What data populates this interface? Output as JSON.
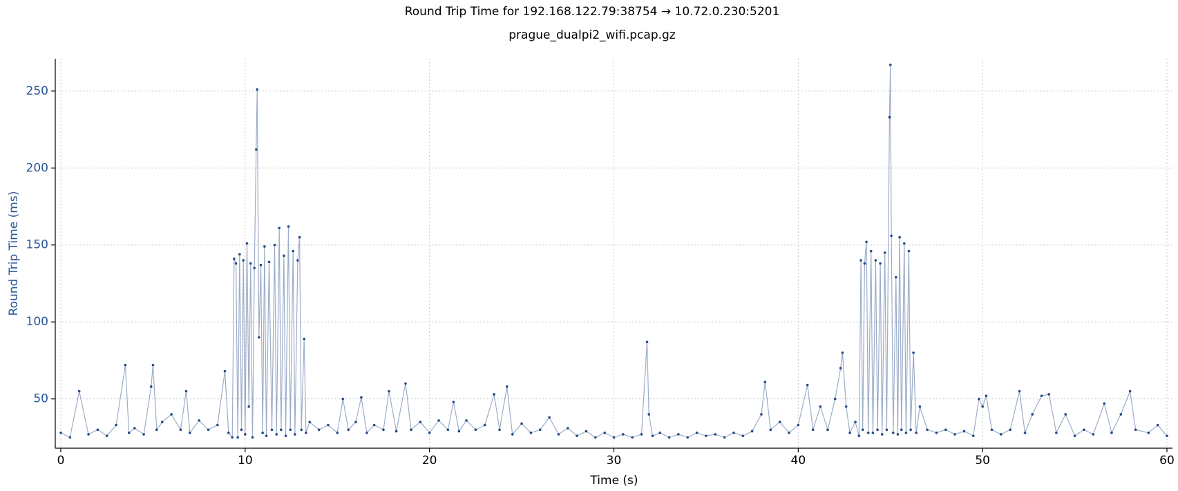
{
  "chart_data": {
    "type": "line",
    "title": "Round Trip Time for 192.168.122.79:38754 → 10.72.0.230:5201",
    "subtitle": "prague_dualpi2_wifi.pcap.gz",
    "x_label": "Time (s)",
    "y_label": "Round Trip Time (ms)",
    "color": "#234a85",
    "grid": true,
    "xlim": [
      -0.3,
      60.3
    ],
    "ylim": [
      18,
      271
    ],
    "xticks": [
      0,
      10,
      20,
      30,
      40,
      50,
      60
    ],
    "yticks": [
      50,
      100,
      150,
      200,
      250
    ],
    "x": [
      0,
      0.5,
      1.0,
      1.5,
      2.0,
      2.5,
      3.0,
      3.5,
      3.7,
      4.0,
      4.5,
      4.9,
      5.0,
      5.2,
      5.5,
      6.0,
      6.5,
      6.8,
      7.0,
      7.5,
      8.0,
      8.5,
      8.9,
      9.1,
      9.3,
      9.4,
      9.5,
      9.6,
      9.7,
      9.8,
      9.9,
      10.0,
      10.1,
      10.2,
      10.3,
      10.4,
      10.5,
      10.6,
      10.65,
      10.75,
      10.85,
      10.95,
      11.05,
      11.15,
      11.3,
      11.45,
      11.6,
      11.7,
      11.85,
      11.95,
      12.1,
      12.2,
      12.35,
      12.45,
      12.6,
      12.7,
      12.85,
      12.95,
      13.05,
      13.2,
      13.3,
      13.5,
      14.0,
      14.5,
      15.0,
      15.3,
      15.6,
      16.0,
      16.3,
      16.6,
      17.0,
      17.5,
      17.8,
      18.2,
      18.7,
      19.0,
      19.5,
      20.0,
      20.5,
      21.0,
      21.3,
      21.6,
      22.0,
      22.5,
      23.0,
      23.5,
      23.8,
      24.2,
      24.5,
      25.0,
      25.5,
      26.0,
      26.5,
      27.0,
      27.5,
      28.0,
      28.5,
      29.0,
      29.5,
      30.0,
      30.5,
      31.0,
      31.5,
      31.8,
      31.9,
      32.1,
      32.5,
      33.0,
      33.5,
      34.0,
      34.5,
      35.0,
      35.5,
      36.0,
      36.5,
      37.0,
      37.5,
      38.0,
      38.2,
      38.5,
      39.0,
      39.5,
      40.0,
      40.5,
      40.8,
      41.2,
      41.6,
      42.0,
      42.3,
      42.4,
      42.6,
      42.8,
      43.1,
      43.3,
      43.4,
      43.5,
      43.6,
      43.7,
      43.8,
      43.95,
      44.05,
      44.2,
      44.3,
      44.45,
      44.55,
      44.7,
      44.8,
      44.95,
      45.0,
      45.05,
      45.15,
      45.3,
      45.4,
      45.5,
      45.6,
      45.75,
      45.85,
      46.0,
      46.1,
      46.25,
      46.4,
      46.6,
      47.0,
      47.5,
      48.0,
      48.5,
      49.0,
      49.5,
      49.8,
      50.0,
      50.2,
      50.5,
      51.0,
      51.5,
      52.0,
      52.3,
      52.7,
      53.2,
      53.6,
      54.0,
      54.5,
      55.0,
      55.5,
      56.0,
      56.6,
      57.0,
      57.5,
      58.0,
      58.3,
      59.0,
      59.5,
      60.0
    ],
    "values": [
      28,
      25,
      55,
      27,
      30,
      26,
      33,
      72,
      28,
      31,
      27,
      58,
      72,
      30,
      35,
      40,
      30,
      55,
      28,
      36,
      30,
      33,
      68,
      28,
      25,
      141,
      138,
      25,
      144,
      30,
      140,
      27,
      151,
      45,
      138,
      25,
      135,
      212,
      251,
      90,
      137,
      28,
      149,
      26,
      139,
      30,
      150,
      27,
      161,
      30,
      143,
      26,
      162,
      30,
      146,
      27,
      140,
      155,
      30,
      89,
      28,
      35,
      30,
      33,
      28,
      50,
      30,
      35,
      51,
      28,
      33,
      30,
      55,
      29,
      60,
      30,
      35,
      28,
      36,
      30,
      48,
      29,
      36,
      30,
      33,
      53,
      30,
      58,
      27,
      34,
      28,
      30,
      38,
      27,
      31,
      26,
      29,
      25,
      28,
      25,
      27,
      25,
      27,
      87,
      40,
      26,
      28,
      25,
      27,
      25,
      28,
      26,
      27,
      25,
      28,
      26,
      29,
      40,
      61,
      30,
      35,
      28,
      33,
      59,
      30,
      45,
      30,
      50,
      70,
      80,
      45,
      28,
      35,
      26,
      140,
      30,
      138,
      152,
      28,
      146,
      28,
      140,
      30,
      138,
      27,
      145,
      30,
      233,
      267,
      156,
      28,
      129,
      27,
      155,
      30,
      151,
      28,
      146,
      30,
      80,
      28,
      45,
      30,
      28,
      30,
      27,
      29,
      26,
      50,
      45,
      52,
      30,
      27,
      30,
      55,
      28,
      40,
      52,
      53,
      28,
      40,
      26,
      30,
      27,
      47,
      28,
      40,
      55,
      30,
      28,
      33,
      26
    ]
  }
}
